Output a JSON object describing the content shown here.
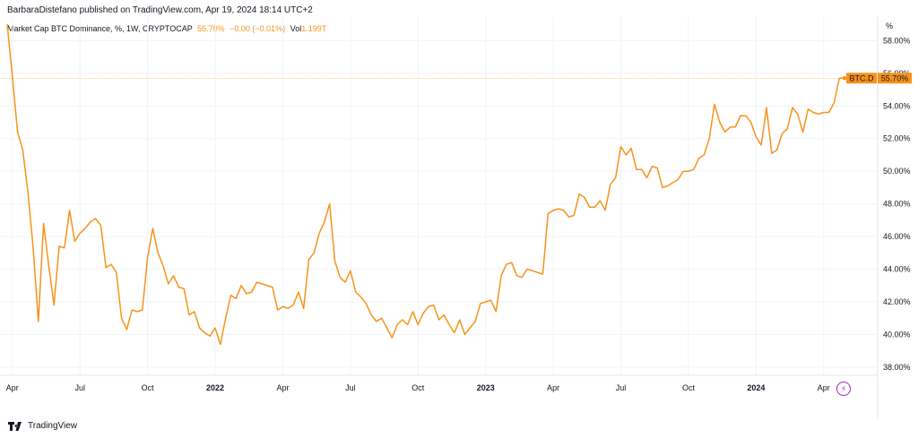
{
  "header": {
    "published": "BarbaraDistefano published on TradingView.com, Apr 19, 2024 18:14 UTC+2"
  },
  "legend": {
    "symbol": "Market Cap BTC Dominance, %, 1W, CRYPTOCAP",
    "last_value": "55.70%",
    "change": "−0.00 (−0.01%)",
    "vol_label": "Vol",
    "vol_value": "1.199T"
  },
  "price_tag": {
    "label": "BTC.D",
    "value": "55.70%"
  },
  "footer": {
    "brand": "TradingView"
  },
  "icons": {
    "logo": "tradingview-logo-icon",
    "indicator": "lightning-icon"
  },
  "colors": {
    "line": "#f7931a",
    "tag": "#f7931a",
    "axis_text": "#131722",
    "grid": "#f0f3fa"
  },
  "chart_data": {
    "type": "line",
    "y_unit_label": "%",
    "ylim": [
      37.5,
      59.5
    ],
    "y_ticks": [
      "58.00%",
      "56.00%",
      "54.00%",
      "52.00%",
      "50.00%",
      "48.00%",
      "46.00%",
      "44.00%",
      "42.00%",
      "40.00%",
      "38.00%"
    ],
    "y_tick_values": [
      58,
      56,
      54,
      52,
      50,
      48,
      46,
      44,
      42,
      40,
      38
    ],
    "x_ticks": [
      {
        "label": "Apr",
        "i": 1,
        "bold": false
      },
      {
        "label": "Jul",
        "i": 14,
        "bold": false
      },
      {
        "label": "Oct",
        "i": 27,
        "bold": false
      },
      {
        "label": "2022",
        "i": 40,
        "bold": true
      },
      {
        "label": "Apr",
        "i": 53,
        "bold": false
      },
      {
        "label": "Jul",
        "i": 66,
        "bold": false
      },
      {
        "label": "Oct",
        "i": 79,
        "bold": false
      },
      {
        "label": "2023",
        "i": 92,
        "bold": true
      },
      {
        "label": "Apr",
        "i": 105,
        "bold": false
      },
      {
        "label": "Jul",
        "i": 118,
        "bold": false
      },
      {
        "label": "Oct",
        "i": 131,
        "bold": false
      },
      {
        "label": "2024",
        "i": 144,
        "bold": true
      },
      {
        "label": "Apr",
        "i": 157,
        "bold": false
      }
    ],
    "series": [
      {
        "values": [
          59.0,
          55.8,
          52.4,
          51.3,
          48.7,
          45.3,
          40.8,
          46.8,
          44.2,
          41.8,
          45.4,
          45.3,
          47.6,
          45.7,
          46.2,
          46.5,
          46.9,
          47.1,
          46.7,
          44.1,
          44.3,
          43.8,
          41.0,
          40.3,
          41.5,
          41.4,
          41.5,
          44.7,
          46.5,
          45.0,
          44.2,
          43.1,
          43.6,
          42.9,
          42.8,
          41.2,
          41.4,
          40.4,
          40.1,
          39.9,
          40.4,
          39.4,
          41.0,
          42.4,
          42.2,
          43.0,
          42.5,
          42.6,
          43.2,
          43.1,
          43.0,
          42.9,
          41.5,
          41.7,
          41.6,
          41.8,
          42.6,
          41.6,
          44.6,
          45.0,
          46.2,
          46.9,
          48.0,
          44.5,
          43.5,
          43.2,
          43.9,
          42.6,
          42.3,
          41.9,
          41.2,
          40.8,
          41.0,
          40.4,
          39.8,
          40.6,
          40.9,
          40.6,
          41.4,
          40.6,
          41.3,
          41.7,
          41.8,
          40.9,
          41.2,
          40.6,
          40.1,
          40.9,
          40.0,
          40.4,
          40.8,
          41.9,
          42.0,
          42.1,
          41.4,
          43.6,
          44.3,
          44.4,
          43.6,
          43.5,
          44.0,
          43.9,
          43.8,
          43.7,
          47.4,
          47.6,
          47.7,
          47.6,
          47.2,
          47.3,
          48.6,
          48.4,
          47.8,
          47.8,
          48.2,
          47.6,
          49.2,
          49.6,
          51.5,
          51.0,
          51.4,
          50.1,
          50.1,
          49.6,
          50.3,
          50.2,
          49.0,
          49.1,
          49.3,
          49.5,
          50.0,
          50.0,
          50.1,
          50.8,
          51.0,
          52.0,
          54.1,
          53.0,
          52.4,
          52.7,
          52.7,
          53.4,
          53.4,
          53.0,
          52.1,
          51.6,
          53.9,
          51.1,
          51.3,
          52.3,
          52.6,
          53.9,
          53.5,
          52.4,
          53.8,
          53.6,
          53.5,
          53.6,
          53.6,
          54.2,
          55.7,
          55.7
        ]
      }
    ]
  }
}
